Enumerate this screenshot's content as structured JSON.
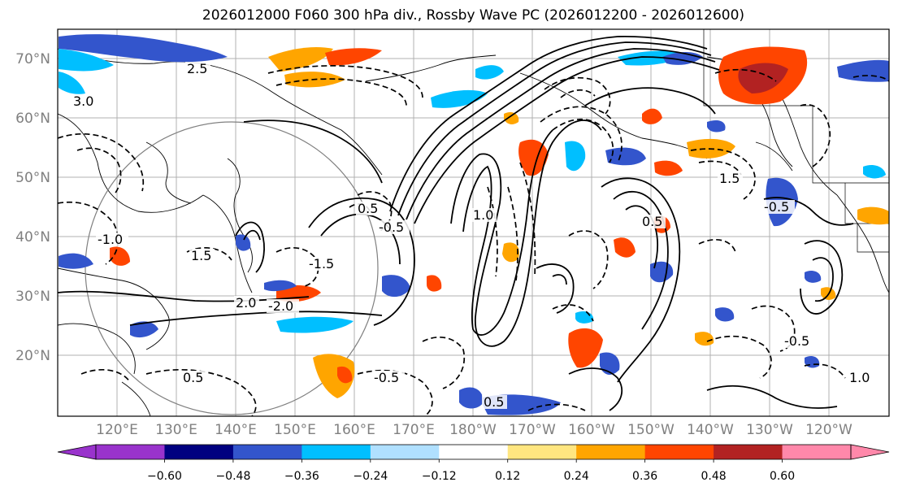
{
  "title": "2026012000 F060 300 hPa div., Rossby Wave PC (2026012200 - 2026012600)",
  "lat_labels": [
    "70°N",
    "60°N",
    "50°N",
    "40°N",
    "30°N",
    "20°N"
  ],
  "lon_labels": [
    "120°E",
    "130°E",
    "140°E",
    "150°E",
    "160°E",
    "170°E",
    "180°W",
    "170°W",
    "160°W",
    "150°W",
    "140°W",
    "130°W",
    "120°W"
  ],
  "colorbar": {
    "colors": [
      "#9933cc",
      "#000080",
      "#3355cc",
      "#00bfff",
      "#b0e0ff",
      "#ffffff",
      "#ffe680",
      "#ffa500",
      "#ff4500",
      "#b22222",
      "#ff88aa"
    ],
    "tick_labels": [
      "−0.60",
      "−0.48",
      "−0.36",
      "−0.24",
      "−0.12",
      "0.12",
      "0.24",
      "0.36",
      "0.48",
      "0.60"
    ]
  },
  "contour_labels": [
    "0.5",
    "-0.5",
    "1.0",
    "-1.0",
    "1.5",
    "-1.5",
    "2.0",
    "-2.0",
    "2.5",
    "3.0",
    "0.5",
    "-0.5",
    "0.5",
    "-0.5",
    "1.0",
    "1.5",
    "-0.5",
    "0.5"
  ]
}
